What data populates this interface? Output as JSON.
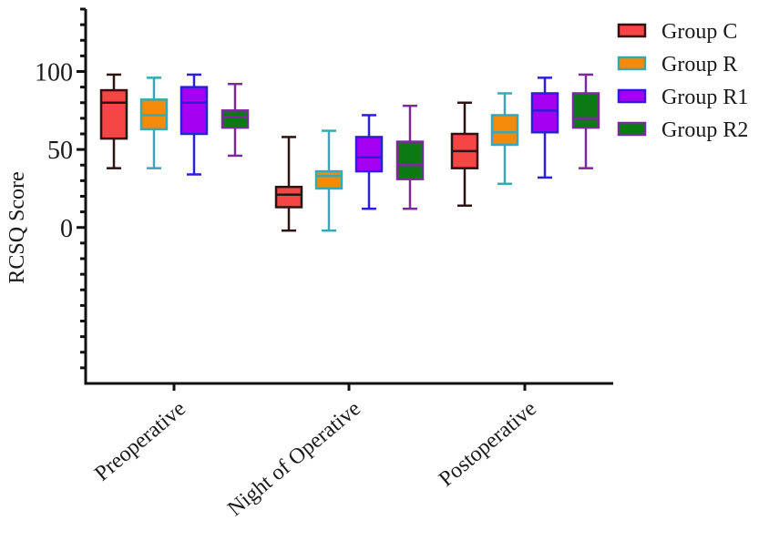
{
  "chart_data": {
    "type": "boxplot",
    "title": "",
    "xlabel": "",
    "ylabel": "RCSQ Score",
    "ylim": [
      -100,
      140
    ],
    "yticks_labeled": [
      0,
      50,
      100
    ],
    "minor_tick_step": 10,
    "grid": false,
    "legend_position": "top-right",
    "categories": [
      "Preoperative",
      "Night of Operative",
      "Postoperative"
    ],
    "series": [
      {
        "name": "Group C",
        "fill": "#f54545",
        "stroke": "#2a1414",
        "boxes": [
          {
            "min": 38,
            "q1": 57,
            "median": 80,
            "q3": 88,
            "max": 98
          },
          {
            "min": -2,
            "q1": 13,
            "median": 21,
            "q3": 26,
            "max": 58
          },
          {
            "min": 14,
            "q1": 38,
            "median": 49,
            "q3": 60,
            "max": 80
          }
        ]
      },
      {
        "name": "Group R",
        "fill": "#f5890a",
        "stroke": "#3aa8b4",
        "boxes": [
          {
            "min": 38,
            "q1": 63,
            "median": 72,
            "q3": 82,
            "max": 96
          },
          {
            "min": -2,
            "q1": 25,
            "median": 33,
            "q3": 36,
            "max": 62
          },
          {
            "min": 28,
            "q1": 53,
            "median": 61,
            "q3": 72,
            "max": 86
          }
        ]
      },
      {
        "name": "Group R1",
        "fill": "#a400f2",
        "stroke": "#2d1fd6",
        "boxes": [
          {
            "min": 34,
            "q1": 60,
            "median": 80,
            "q3": 90,
            "max": 98
          },
          {
            "min": 12,
            "q1": 36,
            "median": 45,
            "q3": 58,
            "max": 72
          },
          {
            "min": 32,
            "q1": 61,
            "median": 75,
            "q3": 86,
            "max": 96
          }
        ]
      },
      {
        "name": "Group R2",
        "fill": "#0b7a12",
        "stroke": "#7b2a9c",
        "boxes": [
          {
            "min": 46,
            "q1": 64,
            "median": 71,
            "q3": 75,
            "max": 92
          },
          {
            "min": 12,
            "q1": 31,
            "median": 40,
            "q3": 55,
            "max": 78
          },
          {
            "min": 38,
            "q1": 64,
            "median": 70,
            "q3": 86,
            "max": 98
          }
        ]
      }
    ]
  }
}
